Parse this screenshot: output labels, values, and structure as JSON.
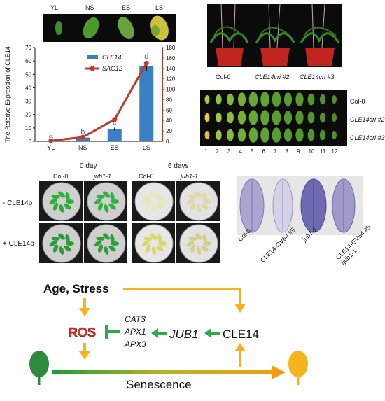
{
  "leafStrip": {
    "labels": [
      "YL",
      "NS",
      "ES",
      "LS"
    ],
    "leafColors": [
      "#3f8f2a",
      "#4f9a2c",
      "#6aa33a",
      "#c9c23a"
    ]
  },
  "chart_data": {
    "type": "bar+line",
    "categories": [
      "YL",
      "NS",
      "ES",
      "LS"
    ],
    "ylabel": "The Relative Expression of CLE14",
    "ylim": [
      0,
      70
    ],
    "yticks": [
      0,
      10,
      20,
      30,
      40,
      50,
      60,
      70
    ],
    "ylim_right": [
      0,
      180
    ],
    "yticks_right": [
      0,
      20,
      40,
      60,
      80,
      100,
      120,
      140,
      160,
      180
    ],
    "series": [
      {
        "name": "CLE14",
        "kind": "bar",
        "color": "#3b7fc4",
        "values": [
          0.3,
          2.8,
          9.2,
          56
        ],
        "errors": [
          0.1,
          0.4,
          1.0,
          3.5
        ]
      },
      {
        "name": "SAG12",
        "kind": "line",
        "axis": "right",
        "color": "#c0392b",
        "values": [
          1,
          8,
          42,
          150
        ],
        "errors": [
          0.5,
          1.5,
          3,
          8
        ]
      }
    ],
    "letters": [
      "a",
      "b",
      "c",
      "d"
    ],
    "letterColor": "#2e75b6"
  },
  "plants": {
    "labels": [
      "Col-0",
      "CLE14cri #2",
      "CLE14cri #3"
    ],
    "italic": [
      false,
      true,
      true
    ]
  },
  "leafSeries": {
    "rowLabels": [
      "Col-0",
      "CLE14cri #2",
      "CLE14cri #3"
    ],
    "numbers": [
      "1",
      "2",
      "3",
      "4",
      "5",
      "6",
      "7",
      "8",
      "9",
      "10",
      "11",
      "12"
    ]
  },
  "dishes": {
    "times": [
      "0 day",
      "6 days"
    ],
    "genotypes": [
      "Col-0",
      "jub1-1",
      "Col-0",
      "jub1-1"
    ],
    "genotypeItalic": [
      false,
      true,
      false,
      true
    ],
    "rowLabels": [
      "- CLE14p",
      "+ CLE14p"
    ]
  },
  "stain": {
    "labels": [
      "Col-0",
      "CLE14-GV64 #5",
      "jub1-1",
      "CLE14-GV64 #5\n/jub1-1"
    ]
  },
  "model": {
    "ageStress": "Age, Stress",
    "ros": "ROS",
    "genes": [
      "CAT3",
      "APX1",
      "APX3"
    ],
    "jub1": "JUB1",
    "cle14": "CLE14",
    "senescence": "Senescence",
    "colors": {
      "arrow": "#f4b41a",
      "green": "#2fa84f",
      "ros": "#e0342b",
      "leafYoung": "#2e8b3d",
      "leafOld": "#f4b41a"
    }
  }
}
